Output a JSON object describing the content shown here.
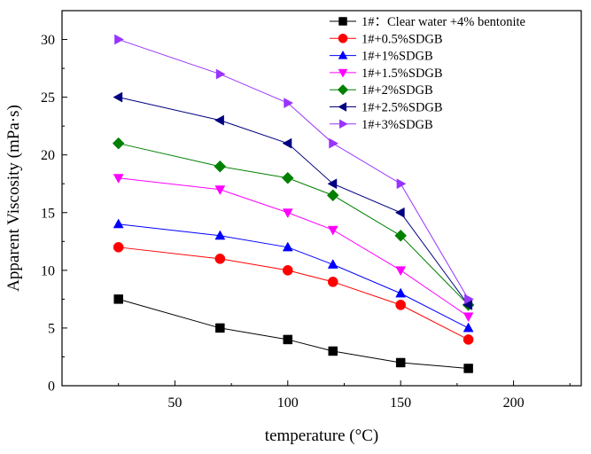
{
  "chart_data": {
    "type": "line",
    "xlabel": "temperature (°C)",
    "ylabel": "Apparent Viscosity (mPa·s)",
    "xlim": [
      0,
      230
    ],
    "ylim": [
      0,
      32.5
    ],
    "xticks": [
      50,
      100,
      150,
      200
    ],
    "xtick_labels": [
      "50",
      "100",
      "150",
      "200"
    ],
    "yticks": [
      0,
      5,
      10,
      15,
      20,
      25,
      30
    ],
    "ytick_labels": [
      "0",
      "5",
      "10",
      "15",
      "20",
      "25",
      "30"
    ],
    "legend_position": "top-right",
    "x": [
      25,
      70,
      100,
      120,
      150,
      180
    ],
    "series": [
      {
        "name": "1#：Clear water +4% bentonite",
        "marker": "square",
        "color": "#000000",
        "values": [
          7.5,
          5,
          4,
          3,
          2,
          1.5
        ]
      },
      {
        "name": "1#+0.5%SDGB",
        "marker": "circle",
        "color": "#ff0000",
        "values": [
          12,
          11,
          10,
          9,
          7,
          4
        ]
      },
      {
        "name": "1#+1%SDGB",
        "marker": "triangle-up",
        "color": "#0000ff",
        "values": [
          14,
          13,
          12,
          10.5,
          8,
          5
        ]
      },
      {
        "name": "1#+1.5%SDGB",
        "marker": "triangle-down",
        "color": "#ff00ff",
        "values": [
          18,
          17,
          15,
          13.5,
          10,
          6
        ]
      },
      {
        "name": "1#+2%SDGB",
        "marker": "diamond",
        "color": "#008000",
        "values": [
          21,
          19,
          18,
          16.5,
          13,
          7
        ]
      },
      {
        "name": "1#+2.5%SDGB",
        "marker": "triangle-left",
        "color": "#000080",
        "values": [
          25,
          23,
          21,
          17.5,
          15,
          7
        ]
      },
      {
        "name": "1#+3%SDGB",
        "marker": "triangle-right",
        "color": "#9933ff",
        "values": [
          30,
          27,
          24.5,
          21,
          17.5,
          7.5
        ]
      }
    ]
  }
}
